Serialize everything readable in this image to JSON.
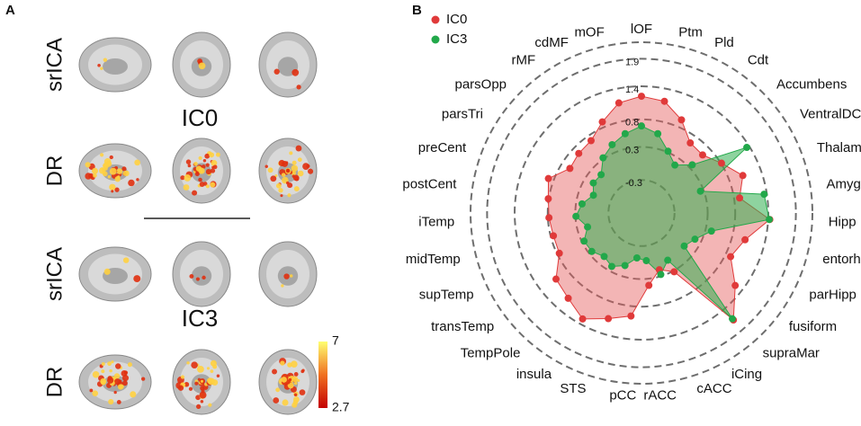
{
  "panel_a": {
    "label": "A",
    "rows": [
      {
        "method": "srICA"
      },
      {
        "method": "DR"
      },
      {
        "method": "srICA"
      },
      {
        "method": "DR"
      }
    ],
    "components": [
      "IC0",
      "IC3"
    ],
    "colorbar": {
      "clim": [
        2.7,
        7
      ],
      "ticks": [
        7,
        2.7
      ]
    }
  },
  "chart_data": {
    "type": "radar",
    "panel_label": "B",
    "categories": [
      "lOF",
      "Ptm",
      "Pld",
      "Cdt",
      "Accumbens",
      "VentralDC",
      "Thalamus",
      "Amygdala",
      "Hipp",
      "entorhinal",
      "parHipp",
      "fusiform",
      "supraMar",
      "iCing",
      "cACC",
      "rACC",
      "pCC",
      "STS",
      "insula",
      "TempPole",
      "transTemp",
      "supTemp",
      "midTemp",
      "iTemp",
      "postCent",
      "preCent",
      "parsTri",
      "parsOpp",
      "rMF",
      "cdMF",
      "mOF"
    ],
    "ylim": [
      -0.9,
      2.2
    ],
    "yticks": [
      -0.3,
      0.3,
      0.8,
      1.4,
      1.9
    ],
    "grid": true,
    "legend": "upper-left",
    "series": [
      {
        "name": "IC0",
        "color": "#e03a3a",
        "fill": "rgba(228,90,90,0.45)",
        "values": [
          1.22,
          1.17,
          0.94,
          0.65,
          0.63,
          0.81,
          1.06,
          0.9,
          1.43,
          1.04,
          0.9,
          1.25,
          1.66,
          0.32,
          0.18,
          0.42,
          0.98,
          1.11,
          1.3,
          1.14,
          1.06,
          0.76,
          0.75,
          0.78,
          0.81,
          0.9,
          0.63,
          0.67,
          0.7,
          0.9,
          1.14
        ]
      },
      {
        "name": "IC3",
        "color": "#22a84a",
        "fill": "rgba(50,175,80,0.55)",
        "values": [
          0.68,
          0.57,
          0.32,
          0.16,
          0.37,
          1.35,
          0.24,
          1.35,
          1.42,
          0.41,
          0.18,
          0.08,
          1.63,
          0.08,
          0.27,
          -0.03,
          -0.08,
          0.1,
          0.21,
          0.14,
          0.24,
          0.26,
          0.11,
          0.29,
          0.19,
          0.03,
          0.13,
          0.11,
          0.32,
          0.45,
          0.57
        ]
      }
    ]
  }
}
